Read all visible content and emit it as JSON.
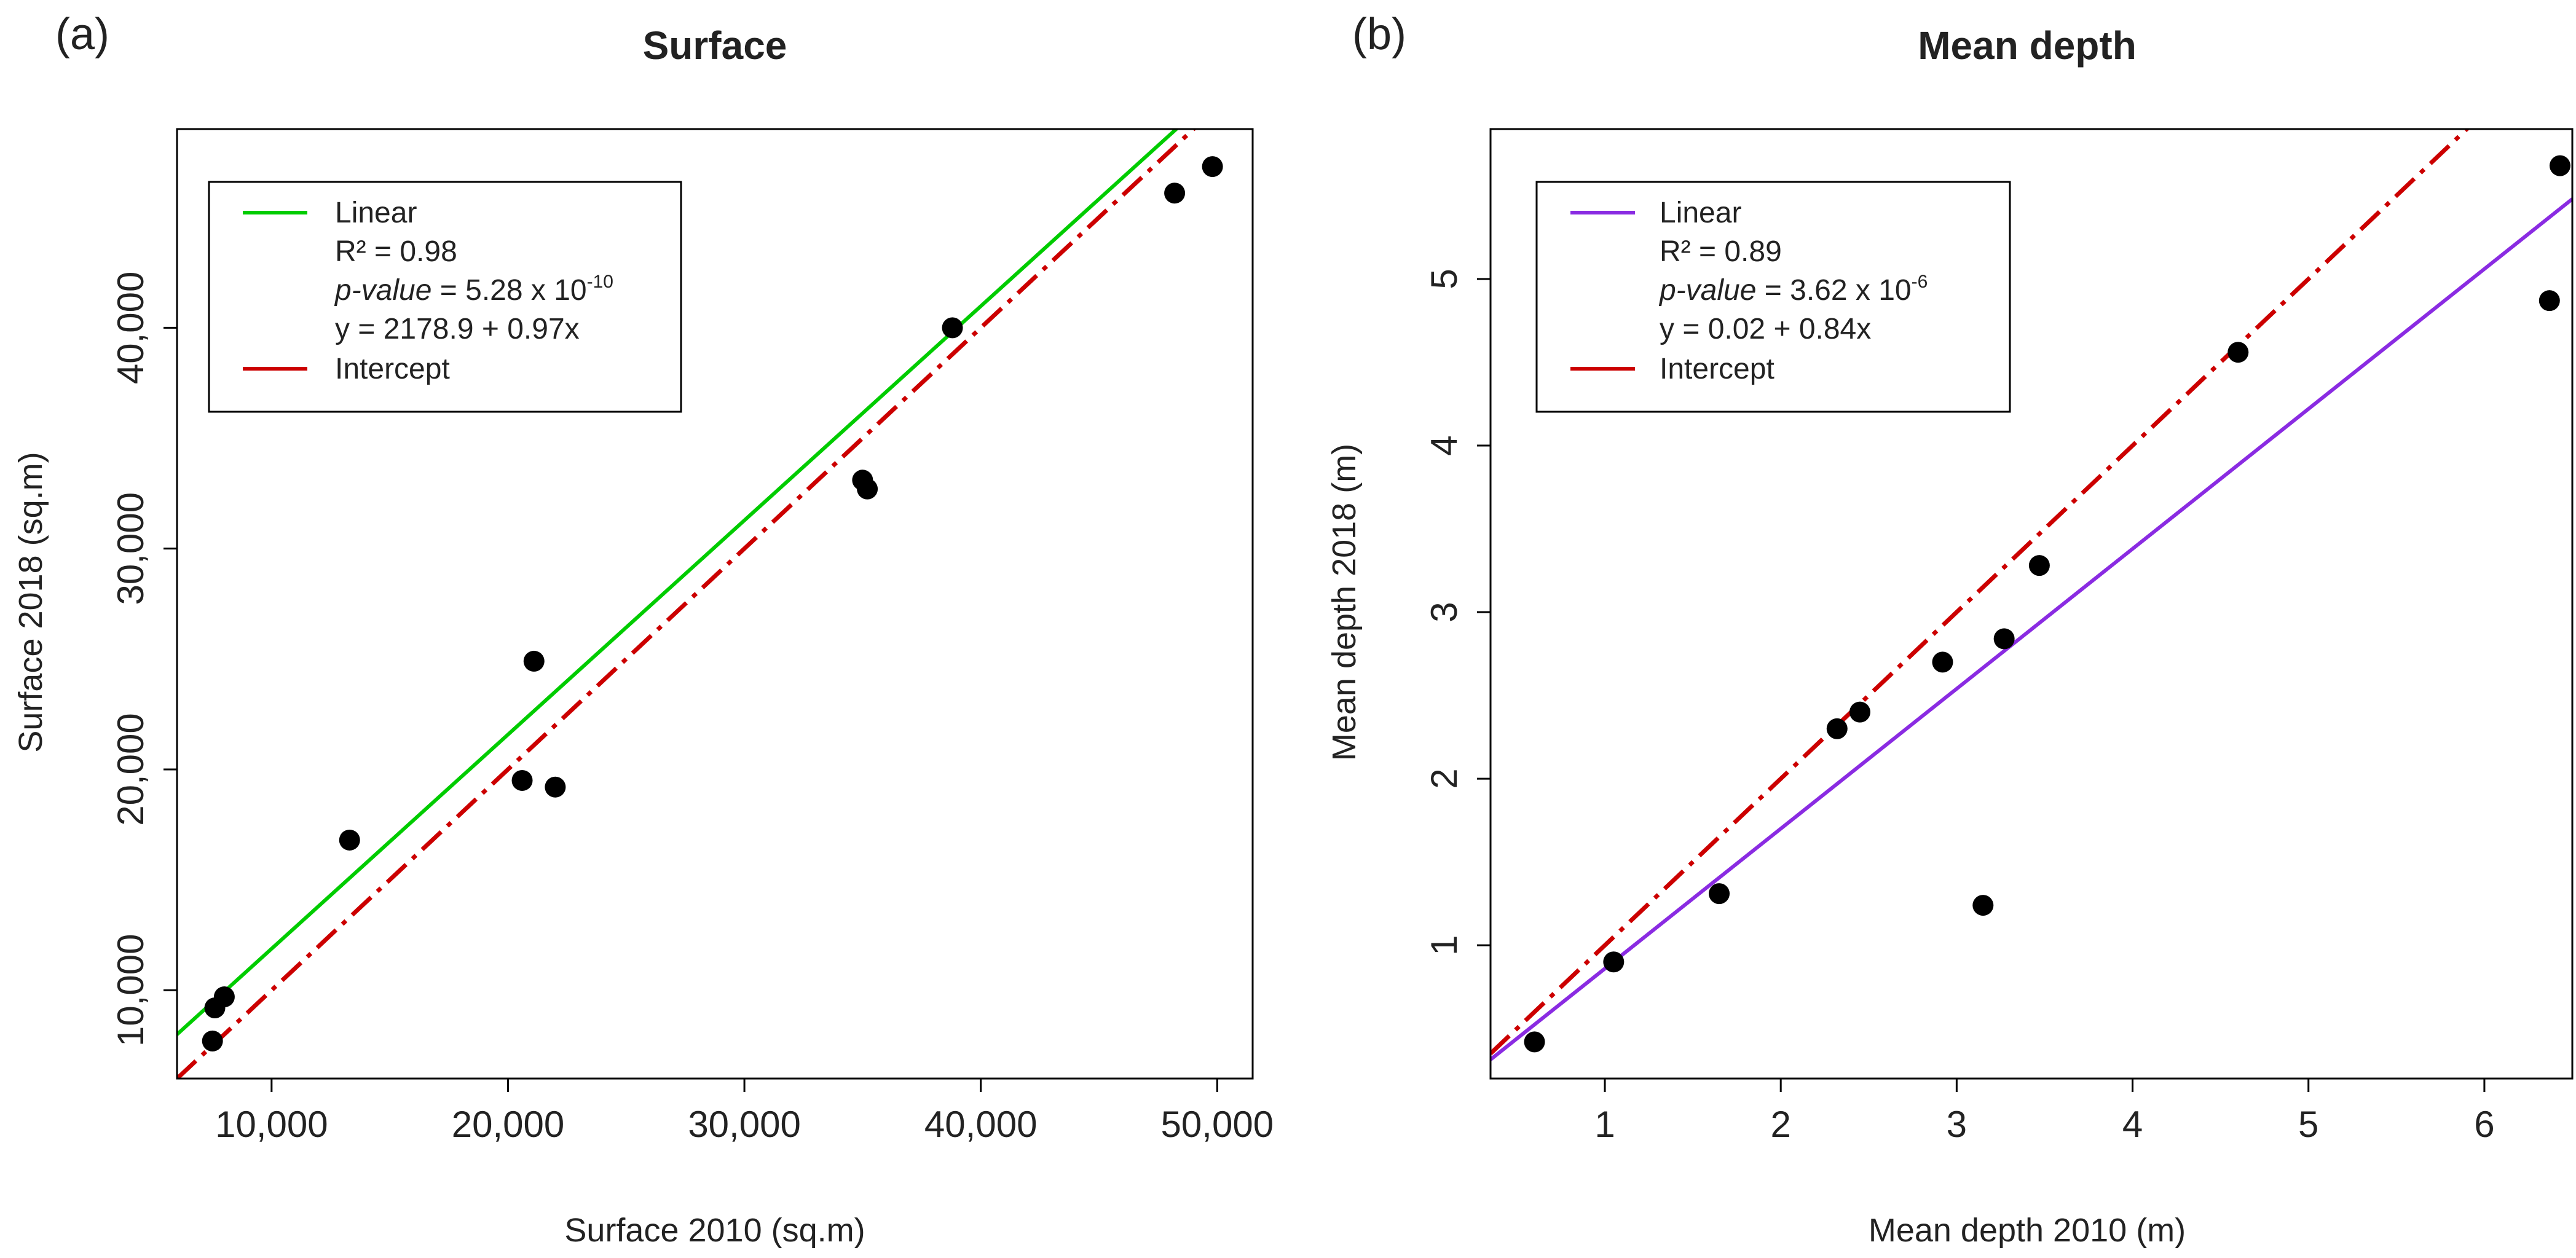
{
  "chart_data": [
    {
      "type": "scatter",
      "panel_tag": "(a)",
      "title": "Surface",
      "xlabel": "Surface 2010 (sq.m)",
      "ylabel": "Surface 2018 (sq.m)",
      "xlim": [
        6000,
        51500
      ],
      "ylim": [
        6000,
        49000
      ],
      "x_ticks": [
        10000,
        20000,
        30000,
        40000,
        50000
      ],
      "x_tick_labels": [
        "10,000",
        "20,000",
        "30,000",
        "40,000",
        "50,000"
      ],
      "y_ticks": [
        10000,
        20000,
        30000,
        40000
      ],
      "y_tick_labels": [
        "10,000",
        "20,000",
        "30,000",
        "40,000"
      ],
      "points": [
        {
          "x": 7500,
          "y": 7700
        },
        {
          "x": 7600,
          "y": 9200
        },
        {
          "x": 8000,
          "y": 9700
        },
        {
          "x": 13300,
          "y": 16800
        },
        {
          "x": 20600,
          "y": 19500
        },
        {
          "x": 21100,
          "y": 24900
        },
        {
          "x": 22000,
          "y": 19200
        },
        {
          "x": 35000,
          "y": 33100
        },
        {
          "x": 35200,
          "y": 32700
        },
        {
          "x": 38800,
          "y": 40000
        },
        {
          "x": 48200,
          "y": 46100
        },
        {
          "x": 49800,
          "y": 47300
        }
      ],
      "linear": {
        "intercept": 2178.9,
        "slope": 0.97,
        "color": "#00cc00"
      },
      "identity": {
        "intercept": 0,
        "slope": 1,
        "color": "#cc0000"
      },
      "legend": {
        "placement": "top-left",
        "linear_label": "Linear",
        "r2_prefix": "R² = ",
        "r2_value": "0.98",
        "pvalue_label": "p-value",
        "pvalue_mid": " = 5.28 x 10",
        "pvalue_exp": "-10",
        "equation": "y = 2178.9 + 0.97x",
        "intercept_label": "Intercept"
      }
    },
    {
      "type": "scatter",
      "panel_tag": "(b)",
      "title": "Mean depth",
      "xlabel": "Mean depth 2010 (m)",
      "ylabel": "Mean depth 2018 (m)",
      "xlim": [
        0.35,
        6.5
      ],
      "ylim": [
        0.2,
        5.9
      ],
      "x_ticks": [
        1,
        2,
        3,
        4,
        5,
        6
      ],
      "x_tick_labels": [
        "1",
        "2",
        "3",
        "4",
        "5",
        "6"
      ],
      "y_ticks": [
        1,
        2,
        3,
        4,
        5
      ],
      "y_tick_labels": [
        "1",
        "2",
        "3",
        "4",
        "5"
      ],
      "points": [
        {
          "x": 0.6,
          "y": 0.42
        },
        {
          "x": 1.05,
          "y": 0.9
        },
        {
          "x": 1.65,
          "y": 1.31
        },
        {
          "x": 2.32,
          "y": 2.3
        },
        {
          "x": 2.45,
          "y": 2.4
        },
        {
          "x": 2.92,
          "y": 2.7
        },
        {
          "x": 3.15,
          "y": 1.24
        },
        {
          "x": 3.27,
          "y": 2.84
        },
        {
          "x": 3.47,
          "y": 3.28
        },
        {
          "x": 4.6,
          "y": 4.56
        },
        {
          "x": 6.37,
          "y": 4.87
        },
        {
          "x": 6.43,
          "y": 5.68
        }
      ],
      "linear": {
        "intercept": 0.02,
        "slope": 0.84,
        "color": "#8a2be2"
      },
      "identity": {
        "intercept": 0,
        "slope": 1,
        "color": "#cc0000"
      },
      "legend": {
        "placement": "top-left",
        "linear_label": "Linear",
        "r2_prefix": "R² = ",
        "r2_value": "0.89",
        "pvalue_label": "p-value",
        "pvalue_mid": " = 3.62 x 10",
        "pvalue_exp": "-6",
        "equation": "y = 0.02 + 0.84x",
        "intercept_label": "Intercept"
      }
    }
  ]
}
